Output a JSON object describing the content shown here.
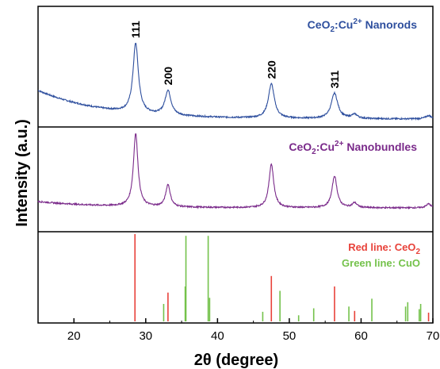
{
  "chart_data": {
    "type": "line",
    "xlabel": "2θ (degree)",
    "ylabel": "Intensity (a.u.)",
    "xlim": [
      15,
      70
    ],
    "xticks": [
      20,
      30,
      40,
      50,
      60,
      70
    ],
    "x_tick_labels": [
      "20",
      "30",
      "40",
      "50",
      "60",
      "70"
    ],
    "grid": false,
    "panels": [
      {
        "id": "nanorods",
        "legend": {
          "base": "CeO",
          "sub": "2",
          "mid": ":Cu",
          "sup": "2+",
          "tail": " Nanorods"
        },
        "color": "#2e4f9e",
        "background": 0.35,
        "peaks": [
          {
            "x": 28.6,
            "h": 0.85,
            "w": 0.45,
            "label": "111"
          },
          {
            "x": 33.1,
            "h": 0.3,
            "w": 0.5,
            "label": "200"
          },
          {
            "x": 47.5,
            "h": 0.42,
            "w": 0.5,
            "label": "220"
          },
          {
            "x": 56.3,
            "h": 0.31,
            "w": 0.55,
            "label": "311"
          },
          {
            "x": 59.1,
            "h": 0.05,
            "w": 0.5
          },
          {
            "x": 69.4,
            "h": 0.04,
            "w": 0.5
          }
        ]
      },
      {
        "id": "nanobundles",
        "legend": {
          "base": "CeO",
          "sub": "2",
          "mid": ":Cu",
          "sup": "2+",
          "tail": " Nanobundles"
        },
        "color": "#7a2a8a",
        "background": 0.08,
        "peaks": [
          {
            "x": 28.6,
            "h": 0.92,
            "w": 0.38
          },
          {
            "x": 33.1,
            "h": 0.28,
            "w": 0.38
          },
          {
            "x": 47.5,
            "h": 0.55,
            "w": 0.4
          },
          {
            "x": 56.3,
            "h": 0.4,
            "w": 0.42
          },
          {
            "x": 59.1,
            "h": 0.06,
            "w": 0.4
          },
          {
            "x": 69.4,
            "h": 0.05,
            "w": 0.4
          }
        ]
      }
    ],
    "reference_lines": {
      "red": {
        "name": "Red line: CeO",
        "name_sub": "2",
        "color": "#e8423a",
        "lines": [
          [
            28.5,
            1.0
          ],
          [
            33.1,
            0.33
          ],
          [
            47.5,
            0.52
          ],
          [
            56.3,
            0.4
          ],
          [
            59.1,
            0.12
          ],
          [
            69.4,
            0.1
          ]
        ]
      },
      "green": {
        "name": "Green line: CuO",
        "color": "#74c24b",
        "lines": [
          [
            32.5,
            0.2
          ],
          [
            35.5,
            0.4
          ],
          [
            35.6,
            0.98
          ],
          [
            38.7,
            0.98
          ],
          [
            38.9,
            0.27
          ],
          [
            46.3,
            0.11
          ],
          [
            48.7,
            0.35
          ],
          [
            51.3,
            0.07
          ],
          [
            53.4,
            0.15
          ],
          [
            58.3,
            0.17
          ],
          [
            61.5,
            0.26
          ],
          [
            66.2,
            0.17
          ],
          [
            66.5,
            0.22
          ],
          [
            68.1,
            0.14
          ],
          [
            68.3,
            0.2
          ]
        ]
      }
    }
  }
}
